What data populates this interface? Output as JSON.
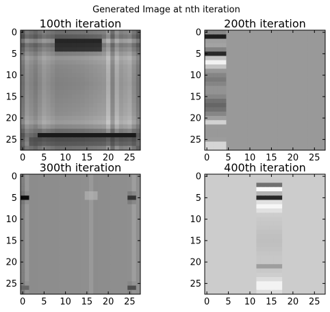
{
  "figure": {
    "suptitle": "Generated Image at nth iteration"
  },
  "chart_data": [
    {
      "type": "heatmap",
      "title": "100th iteration",
      "colormap": "gray",
      "grid": false,
      "image_size": [
        28,
        28
      ],
      "xlim": [
        -0.5,
        27.5
      ],
      "ylim": [
        27.5,
        -0.5
      ],
      "xticks": [
        0,
        5,
        10,
        15,
        20,
        25
      ],
      "yticks": [
        0,
        5,
        10,
        15,
        20,
        25
      ],
      "background": 0.6,
      "col_profile": [
        [
          0,
          0.3
        ],
        [
          1,
          0.55
        ],
        [
          3,
          0.4
        ],
        [
          5,
          0.6
        ],
        [
          8,
          0.45
        ],
        [
          14,
          0.5
        ],
        [
          19,
          0.6
        ],
        [
          20,
          0.8
        ],
        [
          21,
          0.45
        ],
        [
          22,
          0.75
        ],
        [
          23,
          0.6
        ],
        [
          25,
          0.7
        ],
        [
          27,
          0.35
        ]
      ],
      "row_profile": [
        [
          0,
          0.4
        ],
        [
          1,
          0.3
        ],
        [
          2,
          0.6
        ],
        [
          3,
          0.35
        ],
        [
          4,
          0.45
        ],
        [
          6,
          0.7
        ],
        [
          8,
          0.6
        ],
        [
          12,
          0.55
        ],
        [
          16,
          0.6
        ],
        [
          19,
          0.65
        ],
        [
          21,
          0.75
        ],
        [
          22,
          0.6
        ],
        [
          24,
          0.35
        ],
        [
          26,
          0.5
        ],
        [
          27,
          0.4
        ]
      ],
      "features": [
        {
          "row": 2.0,
          "x0": 8,
          "x1": 18,
          "level": 0.15,
          "width": 0.7
        },
        {
          "row": 3.5,
          "x0": 8,
          "x1": 18,
          "level": 0.1,
          "width": 0.9
        },
        {
          "row": 24.0,
          "x0": 4,
          "x1": 26,
          "level": 0.1,
          "width": 0.7
        },
        {
          "row": 25.5,
          "x0": 2,
          "x1": 26,
          "level": 0.2,
          "width": 0.6
        }
      ]
    },
    {
      "type": "heatmap",
      "title": "200th iteration",
      "colormap": "gray",
      "grid": false,
      "image_size": [
        28,
        28
      ],
      "xlim": [
        -0.5,
        27.5
      ],
      "ylim": [
        27.5,
        -0.5
      ],
      "xticks": [
        0,
        5,
        10,
        15,
        20,
        25
      ],
      "yticks": [
        0,
        5,
        10,
        15,
        20,
        25
      ],
      "background": 0.6,
      "col_profile": [],
      "row_profile": [],
      "features": [
        {
          "row": 1.0,
          "x0": 0,
          "x1": 4,
          "level": 0.05,
          "width": 0.7
        },
        {
          "row": 2.5,
          "x0": 0,
          "x1": 4,
          "level": 0.65,
          "width": 1.0
        },
        {
          "row": 4.8,
          "x0": 0,
          "x1": 4,
          "level": 0.05,
          "width": 0.6
        },
        {
          "row": 7.0,
          "x0": 0,
          "x1": 4,
          "level": 0.95,
          "width": 1.2
        },
        {
          "row": 11.0,
          "x0": 0,
          "x1": 4,
          "level": 0.48,
          "width": 1.5
        },
        {
          "row": 17.0,
          "x0": 0,
          "x1": 4,
          "level": 0.4,
          "width": 2.0
        },
        {
          "row": 20.8,
          "x0": 0,
          "x1": 4,
          "level": 0.85,
          "width": 0.6
        },
        {
          "row": 26.5,
          "x0": 0,
          "x1": 4,
          "level": 0.95,
          "width": 0.8
        }
      ]
    },
    {
      "type": "heatmap",
      "title": "300th iteration",
      "colormap": "gray",
      "grid": false,
      "image_size": [
        28,
        28
      ],
      "xlim": [
        -0.5,
        27.5
      ],
      "ylim": [
        27.5,
        -0.5
      ],
      "xticks": [
        0,
        5,
        10,
        15,
        20,
        25
      ],
      "yticks": [
        0,
        5,
        10,
        15,
        20,
        25
      ],
      "background": 0.56,
      "col_profile": [
        [
          0,
          0.5
        ],
        [
          1,
          0.6
        ],
        [
          2,
          0.55
        ],
        [
          15,
          0.56
        ],
        [
          16,
          0.6
        ],
        [
          17,
          0.55
        ],
        [
          25,
          0.56
        ],
        [
          26,
          0.62
        ],
        [
          27,
          0.56
        ]
      ],
      "row_profile": [],
      "features": [
        {
          "row": 5.0,
          "x0": 0,
          "x1": 1,
          "level": 0.05,
          "width": 0.6
        },
        {
          "row": 4.5,
          "x0": 15,
          "x1": 17,
          "level": 0.75,
          "width": 0.6
        },
        {
          "row": 5.0,
          "x0": 25,
          "x1": 26,
          "level": 0.2,
          "width": 0.8
        },
        {
          "row": 26.0,
          "x0": 25,
          "x1": 26,
          "level": 0.3,
          "width": 0.7
        },
        {
          "row": 26.0,
          "x0": 0,
          "x1": 1,
          "level": 0.4,
          "width": 0.7
        }
      ]
    },
    {
      "type": "heatmap",
      "title": "400th iteration",
      "colormap": "gray",
      "grid": false,
      "image_size": [
        28,
        28
      ],
      "xlim": [
        -0.5,
        27.5
      ],
      "ylim": [
        27.5,
        -0.5
      ],
      "xticks": [
        0,
        5,
        10,
        15,
        20,
        25
      ],
      "yticks": [
        0,
        5,
        10,
        15,
        20,
        25
      ],
      "background": 0.8,
      "col_profile": [],
      "row_profile": [],
      "features": [
        {
          "row": 2.0,
          "x0": 12,
          "x1": 17,
          "level": 0.3,
          "width": 0.5
        },
        {
          "row": 3.0,
          "x0": 12,
          "x1": 17,
          "level": 0.98,
          "width": 0.8
        },
        {
          "row": 4.8,
          "x0": 12,
          "x1": 17,
          "level": 0.02,
          "width": 0.6
        },
        {
          "row": 7.0,
          "x0": 12,
          "x1": 17,
          "level": 0.97,
          "width": 1.2
        },
        {
          "row": 15.0,
          "x0": 12,
          "x1": 17,
          "level": 0.75,
          "width": 4.0
        },
        {
          "row": 21.0,
          "x0": 12,
          "x1": 17,
          "level": 0.62,
          "width": 0.6
        },
        {
          "row": 25.5,
          "x0": 12,
          "x1": 17,
          "level": 0.97,
          "width": 1.5
        }
      ]
    }
  ]
}
